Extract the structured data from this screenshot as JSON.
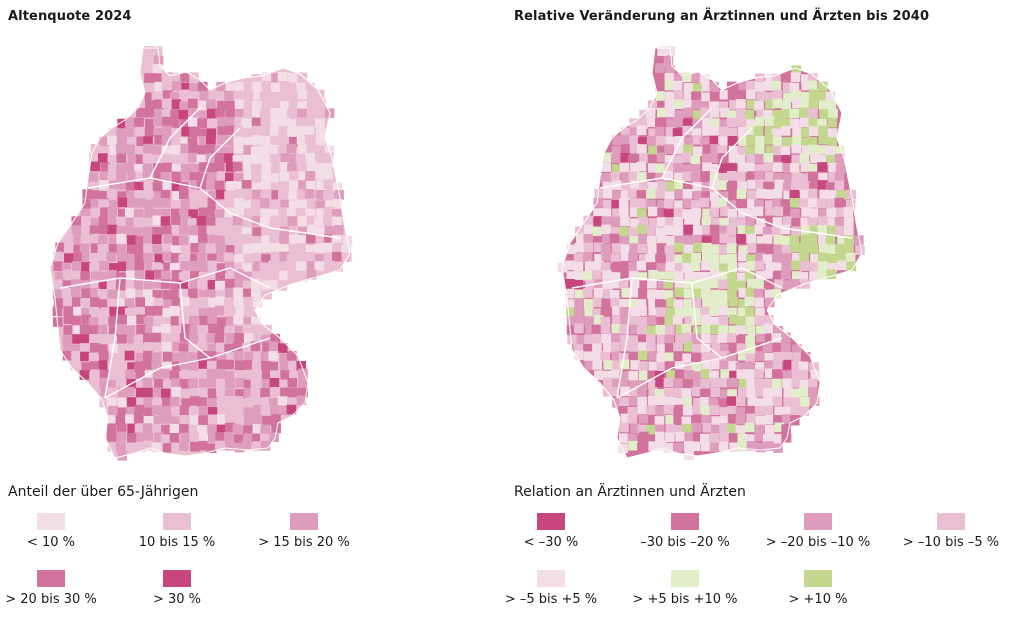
{
  "left_map": {
    "title": "Altenquote 2024",
    "legend_title": "Anteil der über 65-Jährigen",
    "legend": [
      {
        "label": "< 10 %",
        "color": "#f3dde7"
      },
      {
        "label": "10 bis 15 %",
        "color": "#ebbfd3"
      },
      {
        "label": "> 15 bis 20 %",
        "color": "#df9dbd"
      },
      {
        "label": "> 20 bis 30 %",
        "color": "#d2739e"
      },
      {
        "label": "> 30 %",
        "color": "#c8467e"
      }
    ]
  },
  "right_map": {
    "title": "Relative Veränderung an Ärztinnen und Ärzten bis 2040",
    "legend_title": "Relation an Ärztinnen und Ärzten",
    "legend": [
      {
        "label": "< –30 %",
        "color": "#c8467e"
      },
      {
        "label": "–30 bis –20 %",
        "color": "#d2739e"
      },
      {
        "label": "> –20 bis –10 %",
        "color": "#df9dbd"
      },
      {
        "label": "> –10 bis –5 %",
        "color": "#ebbfd3"
      },
      {
        "label": "> –5 bis +5 %",
        "color": "#f3dde7"
      },
      {
        "label": "> +5 bis +10 %",
        "color": "#e2edc9"
      },
      {
        "label": "> +10 %",
        "color": "#c3d88e"
      }
    ]
  }
}
